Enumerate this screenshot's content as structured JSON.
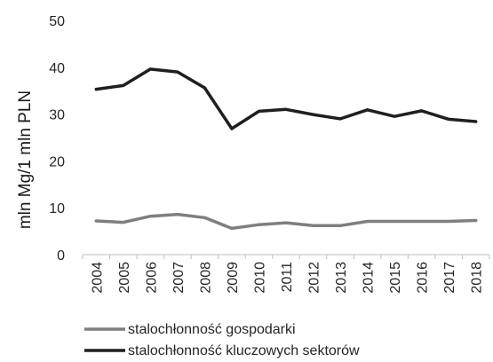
{
  "chart_data": {
    "type": "line",
    "title": "",
    "xlabel": "",
    "ylabel": "mln Mg/1 mln PLN",
    "ylim": [
      0,
      50
    ],
    "yticks": [
      0,
      10,
      20,
      30,
      40,
      50
    ],
    "grid": false,
    "legend_position": "bottom",
    "categories": [
      "2004",
      "2005",
      "2006",
      "2007",
      "2008",
      "2009",
      "2010",
      "2011",
      "2012",
      "2013",
      "2014",
      "2015",
      "2016",
      "2017",
      "2018"
    ],
    "series": [
      {
        "name": "stalochłonność gospodarki",
        "color": "#7f7f7f",
        "values": [
          7.2,
          6.9,
          8.2,
          8.6,
          7.9,
          5.6,
          6.4,
          6.8,
          6.2,
          6.2,
          7.1,
          7.1,
          7.1,
          7.1,
          7.3
        ]
      },
      {
        "name": "stalochłonność kluczowych sektorów",
        "color": "#1f1f1f",
        "values": [
          35.3,
          36.1,
          39.6,
          39.0,
          35.6,
          26.9,
          30.6,
          31.0,
          29.9,
          29.0,
          30.9,
          29.5,
          30.7,
          28.9,
          28.4
        ]
      }
    ]
  }
}
